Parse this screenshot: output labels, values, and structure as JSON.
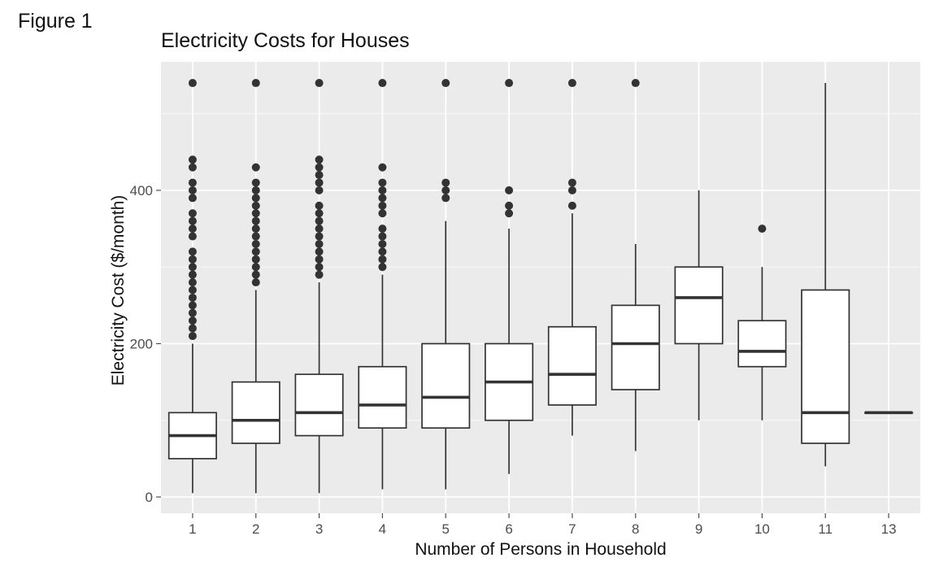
{
  "figure_label": "Figure 1",
  "chart_data": {
    "type": "boxplot",
    "title": "Electricity Costs for Houses",
    "xlabel": "Number of Persons in Household",
    "ylabel": "Electricity Cost ($/month)",
    "ylim": [
      -15,
      555
    ],
    "y_ticks": [
      0,
      200,
      400
    ],
    "grid": true,
    "categories": [
      "1",
      "2",
      "3",
      "4",
      "5",
      "6",
      "7",
      "8",
      "9",
      "10",
      "11",
      "13"
    ],
    "boxes": [
      {
        "category": "1",
        "whisker_low": 5,
        "q1": 50,
        "median": 80,
        "q3": 110,
        "whisker_high": 200,
        "outliers": [
          210,
          220,
          230,
          240,
          250,
          260,
          270,
          280,
          290,
          300,
          310,
          320,
          340,
          350,
          360,
          370,
          390,
          400,
          410,
          430,
          440,
          540
        ]
      },
      {
        "category": "2",
        "whisker_low": 5,
        "q1": 70,
        "median": 100,
        "q3": 150,
        "whisker_high": 270,
        "outliers": [
          280,
          290,
          300,
          310,
          320,
          330,
          340,
          350,
          360,
          370,
          380,
          390,
          400,
          410,
          430,
          540
        ]
      },
      {
        "category": "3",
        "whisker_low": 5,
        "q1": 80,
        "median": 110,
        "q3": 160,
        "whisker_high": 280,
        "outliers": [
          290,
          300,
          310,
          320,
          330,
          340,
          350,
          360,
          370,
          380,
          400,
          410,
          420,
          430,
          440,
          540
        ]
      },
      {
        "category": "4",
        "whisker_low": 10,
        "q1": 90,
        "median": 120,
        "q3": 170,
        "whisker_high": 290,
        "outliers": [
          300,
          310,
          320,
          330,
          340,
          350,
          370,
          380,
          390,
          400,
          410,
          430,
          540
        ]
      },
      {
        "category": "5",
        "whisker_low": 10,
        "q1": 90,
        "median": 130,
        "q3": 200,
        "whisker_high": 360,
        "outliers": [
          390,
          400,
          410,
          540
        ]
      },
      {
        "category": "6",
        "whisker_low": 30,
        "q1": 100,
        "median": 150,
        "q3": 200,
        "whisker_high": 350,
        "outliers": [
          370,
          380,
          400,
          540
        ]
      },
      {
        "category": "7",
        "whisker_low": 80,
        "q1": 120,
        "median": 160,
        "q3": 222,
        "whisker_high": 370,
        "outliers": [
          380,
          400,
          410,
          540
        ]
      },
      {
        "category": "8",
        "whisker_low": 60,
        "q1": 140,
        "median": 200,
        "q3": 250,
        "whisker_high": 330,
        "outliers": [
          540
        ]
      },
      {
        "category": "9",
        "whisker_low": 100,
        "q1": 200,
        "median": 260,
        "q3": 300,
        "whisker_high": 400,
        "outliers": []
      },
      {
        "category": "10",
        "whisker_low": 100,
        "q1": 170,
        "median": 190,
        "q3": 230,
        "whisker_high": 300,
        "outliers": [
          350
        ]
      },
      {
        "category": "11",
        "whisker_low": 40,
        "q1": 70,
        "median": 110,
        "q3": 270,
        "whisker_high": 540,
        "outliers": []
      },
      {
        "category": "13",
        "whisker_low": 110,
        "q1": 110,
        "median": 110,
        "q3": 110,
        "whisker_high": 110,
        "outliers": []
      }
    ],
    "colors": {
      "panel_background": "#ebebeb",
      "grid_major": "#ffffff",
      "box_fill": "#ffffff",
      "box_stroke": "#333333",
      "outlier": "#333333"
    }
  }
}
